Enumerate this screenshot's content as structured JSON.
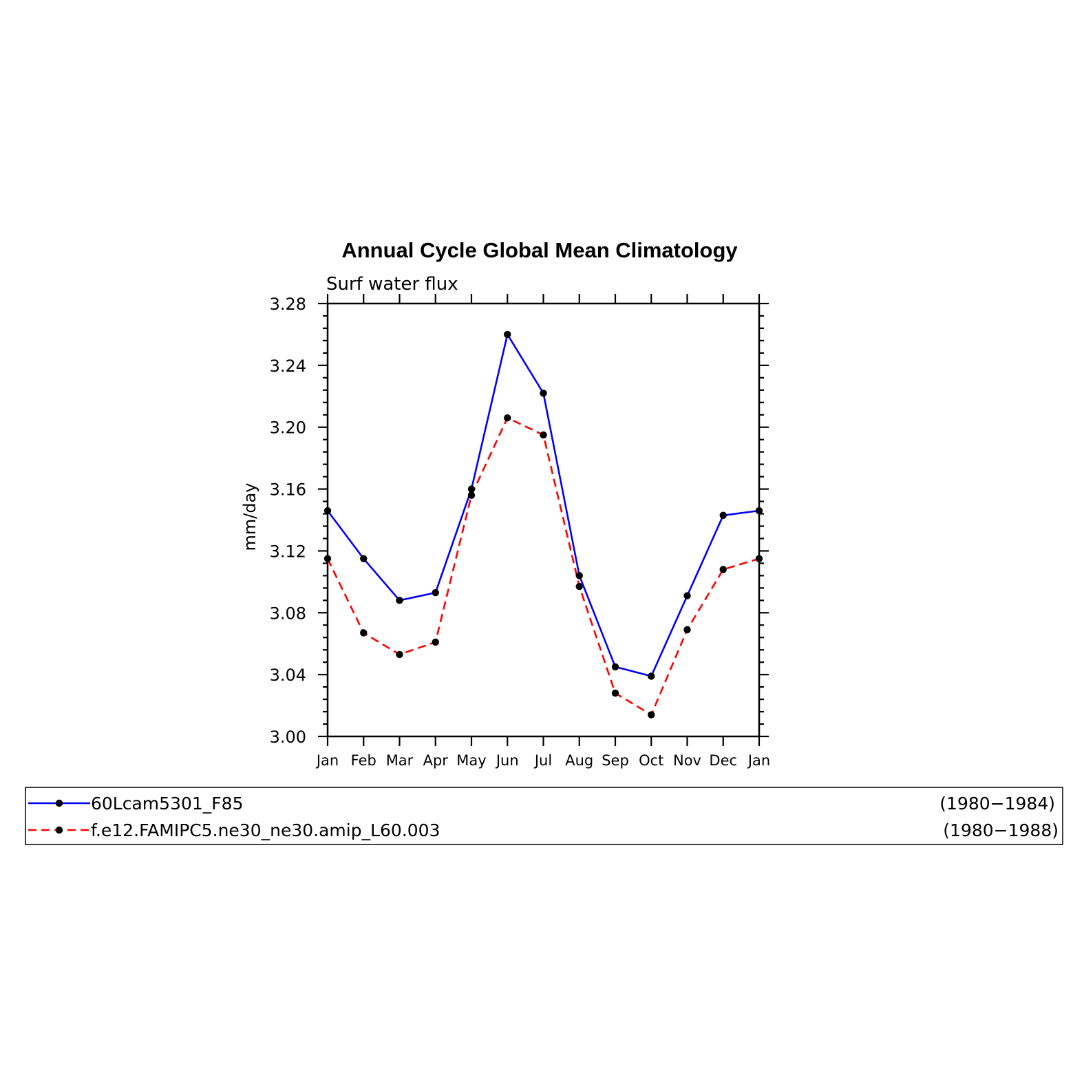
{
  "chart_data": {
    "type": "line",
    "title": "Annual Cycle Global Mean Climatology",
    "subtitle": "Surf water flux",
    "ylabel": "mm/day",
    "xlabel": "",
    "x": [
      "Jan",
      "Feb",
      "Mar",
      "Apr",
      "May",
      "Jun",
      "Jul",
      "Aug",
      "Sep",
      "Oct",
      "Nov",
      "Dec",
      "Jan"
    ],
    "ylim": [
      3.0,
      3.28
    ],
    "yticks": [
      "3.00",
      "3.04",
      "3.08",
      "3.12",
      "3.16",
      "3.20",
      "3.24",
      "3.28"
    ],
    "grid": false,
    "legend_position": "bottom",
    "series": [
      {
        "name": "60Lcam5301_F85",
        "years": "(1980−1984)",
        "color": "#0000ff",
        "dash": "solid",
        "values": [
          3.146,
          3.115,
          3.088,
          3.093,
          3.16,
          3.26,
          3.222,
          3.104,
          3.045,
          3.039,
          3.091,
          3.143,
          3.146
        ]
      },
      {
        "name": "f.e12.FAMIPC5.ne30_ne30.amip_L60.003",
        "years": "(1980−1988)",
        "color": "#ff0000",
        "dash": "dashed",
        "values": [
          3.115,
          3.067,
          3.053,
          3.061,
          3.156,
          3.206,
          3.195,
          3.097,
          3.028,
          3.014,
          3.069,
          3.108,
          3.115
        ]
      }
    ]
  }
}
